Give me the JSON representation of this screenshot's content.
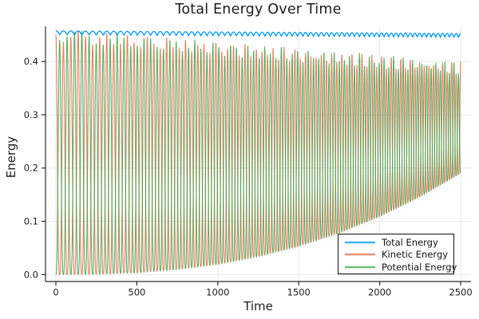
{
  "chart_data": {
    "type": "line",
    "title": "Total Energy Over Time",
    "xlabel": "Time",
    "ylabel": "Energy",
    "xlim": [
      -64,
      2564
    ],
    "ylim": [
      -0.013,
      0.466
    ],
    "x_tick_values": [
      0,
      500,
      1000,
      1500,
      2000,
      2500
    ],
    "x_tick_labels": [
      "0",
      "500",
      "1000",
      "1500",
      "2000",
      "2500"
    ],
    "y_tick_values": [
      0.0,
      0.1,
      0.2,
      0.3,
      0.4
    ],
    "y_tick_labels": [
      "0.0",
      "0.1",
      "0.2",
      "0.3",
      "0.4"
    ],
    "grid": true,
    "grid_color": "#e9e9e9",
    "axis_color": "#2b2b2b",
    "legend_position": "bottom-right",
    "t_range": [
      0,
      2500
    ],
    "sample_t": [
      0,
      250,
      500,
      750,
      1000,
      1250,
      1500,
      1750,
      2000,
      2250,
      2500
    ],
    "series": [
      {
        "name": "Total Energy",
        "color": "#009AFA",
        "kind": "ripple",
        "base_values": [
          0.4575,
          0.457,
          0.4565,
          0.456,
          0.4555,
          0.455,
          0.4545,
          0.454,
          0.4535,
          0.453,
          0.4525
        ],
        "ripple_amplitude": 0.0075
      },
      {
        "name": "Kinetic Energy",
        "color": "#E36F47",
        "kind": "oscillation",
        "phase": 0
      },
      {
        "name": "Potential Energy",
        "color": "#3DA44E",
        "kind": "oscillation",
        "phase": 3.14159
      }
    ],
    "envelope_upper": [
      0.45,
      0.4438,
      0.4376,
      0.4314,
      0.4252,
      0.419,
      0.4128,
      0.4066,
      0.4004,
      0.3942,
      0.388
    ],
    "envelope_lower": [
      0.0,
      0.0006,
      0.0034,
      0.0094,
      0.0192,
      0.0336,
      0.0529,
      0.0779,
      0.1088,
      0.1461,
      0.19
    ],
    "oscillation_cycles": 72,
    "chirp": 0.35,
    "waveform_power": 1.6,
    "peak_jitter": 0.012
  }
}
